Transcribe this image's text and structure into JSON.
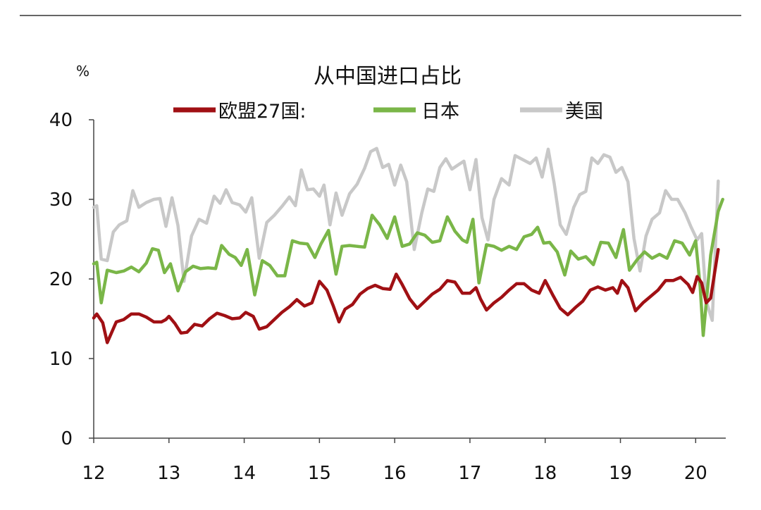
{
  "chart_data": {
    "type": "line",
    "title": "从中国进口占比",
    "unit_label": "%",
    "xlabel": "",
    "ylabel": "",
    "ylim": [
      0,
      40
    ],
    "yticks": [
      0,
      10,
      20,
      30,
      40
    ],
    "x_tick_labels": [
      "12",
      "13",
      "14",
      "15",
      "16",
      "17",
      "18",
      "19",
      "20"
    ],
    "x_start_year": 12,
    "x_range_years": [
      12,
      20.4
    ],
    "grid": false,
    "legend_position": "top",
    "series": [
      {
        "name": "欧盟27国:",
        "color": "#a01014",
        "points": [
          [
            12.0,
            15.1
          ],
          [
            12.04,
            15.6
          ],
          [
            12.12,
            14.5
          ],
          [
            12.18,
            12.0
          ],
          [
            12.3,
            14.6
          ],
          [
            12.4,
            14.9
          ],
          [
            12.5,
            15.6
          ],
          [
            12.6,
            15.6
          ],
          [
            12.7,
            15.2
          ],
          [
            12.8,
            14.6
          ],
          [
            12.9,
            14.6
          ],
          [
            12.96,
            14.9
          ],
          [
            13.0,
            15.3
          ],
          [
            13.08,
            14.4
          ],
          [
            13.16,
            13.2
          ],
          [
            13.24,
            13.3
          ],
          [
            13.34,
            14.3
          ],
          [
            13.44,
            14.1
          ],
          [
            13.54,
            15.0
          ],
          [
            13.64,
            15.7
          ],
          [
            13.74,
            15.4
          ],
          [
            13.84,
            15.0
          ],
          [
            13.94,
            15.1
          ],
          [
            14.02,
            15.8
          ],
          [
            14.12,
            15.3
          ],
          [
            14.2,
            13.7
          ],
          [
            14.3,
            14.0
          ],
          [
            14.4,
            14.9
          ],
          [
            14.5,
            15.8
          ],
          [
            14.6,
            16.5
          ],
          [
            14.7,
            17.4
          ],
          [
            14.8,
            16.6
          ],
          [
            14.9,
            17.0
          ],
          [
            15.0,
            19.7
          ],
          [
            15.1,
            18.6
          ],
          [
            15.18,
            16.7
          ],
          [
            15.26,
            14.6
          ],
          [
            15.34,
            16.2
          ],
          [
            15.44,
            16.8
          ],
          [
            15.54,
            18.1
          ],
          [
            15.64,
            18.8
          ],
          [
            15.74,
            19.2
          ],
          [
            15.84,
            18.8
          ],
          [
            15.94,
            18.7
          ],
          [
            16.02,
            20.6
          ],
          [
            16.1,
            19.3
          ],
          [
            16.2,
            17.5
          ],
          [
            16.3,
            16.3
          ],
          [
            16.4,
            17.2
          ],
          [
            16.5,
            18.1
          ],
          [
            16.6,
            18.7
          ],
          [
            16.7,
            19.8
          ],
          [
            16.8,
            19.6
          ],
          [
            16.9,
            18.2
          ],
          [
            17.0,
            18.2
          ],
          [
            17.08,
            18.9
          ],
          [
            17.14,
            17.5
          ],
          [
            17.22,
            16.1
          ],
          [
            17.32,
            17.0
          ],
          [
            17.42,
            17.7
          ],
          [
            17.52,
            18.6
          ],
          [
            17.62,
            19.4
          ],
          [
            17.72,
            19.4
          ],
          [
            17.82,
            18.6
          ],
          [
            17.92,
            18.2
          ],
          [
            18.0,
            19.8
          ],
          [
            18.1,
            18.0
          ],
          [
            18.2,
            16.3
          ],
          [
            18.3,
            15.5
          ],
          [
            18.4,
            16.4
          ],
          [
            18.5,
            17.2
          ],
          [
            18.6,
            18.6
          ],
          [
            18.7,
            19.0
          ],
          [
            18.8,
            18.6
          ],
          [
            18.9,
            18.9
          ],
          [
            18.96,
            18.2
          ],
          [
            19.02,
            19.8
          ],
          [
            19.1,
            18.9
          ],
          [
            19.2,
            16.0
          ],
          [
            19.3,
            17.0
          ],
          [
            19.4,
            17.8
          ],
          [
            19.5,
            18.6
          ],
          [
            19.6,
            19.8
          ],
          [
            19.7,
            19.8
          ],
          [
            19.8,
            20.2
          ],
          [
            19.9,
            19.3
          ],
          [
            19.96,
            18.3
          ],
          [
            20.02,
            20.3
          ],
          [
            20.08,
            19.5
          ],
          [
            20.14,
            17.0
          ],
          [
            20.2,
            17.6
          ],
          [
            20.3,
            23.7
          ]
        ]
      },
      {
        "name": "日本",
        "color": "#7ab648",
        "points": [
          [
            12.0,
            21.9
          ],
          [
            12.04,
            22.1
          ],
          [
            12.1,
            17.0
          ],
          [
            12.18,
            21.1
          ],
          [
            12.3,
            20.8
          ],
          [
            12.4,
            21.0
          ],
          [
            12.5,
            21.5
          ],
          [
            12.6,
            20.9
          ],
          [
            12.7,
            22.0
          ],
          [
            12.78,
            23.8
          ],
          [
            12.86,
            23.6
          ],
          [
            12.94,
            20.8
          ],
          [
            13.02,
            21.9
          ],
          [
            13.12,
            18.5
          ],
          [
            13.22,
            20.9
          ],
          [
            13.32,
            21.6
          ],
          [
            13.42,
            21.3
          ],
          [
            13.52,
            21.4
          ],
          [
            13.62,
            21.3
          ],
          [
            13.7,
            24.2
          ],
          [
            13.8,
            23.1
          ],
          [
            13.88,
            22.7
          ],
          [
            13.96,
            21.7
          ],
          [
            14.04,
            23.7
          ],
          [
            14.14,
            18.0
          ],
          [
            14.24,
            22.3
          ],
          [
            14.34,
            21.7
          ],
          [
            14.44,
            20.4
          ],
          [
            14.54,
            20.4
          ],
          [
            14.64,
            24.8
          ],
          [
            14.74,
            24.5
          ],
          [
            14.84,
            24.4
          ],
          [
            14.94,
            22.7
          ],
          [
            15.02,
            24.4
          ],
          [
            15.12,
            26.1
          ],
          [
            15.22,
            20.6
          ],
          [
            15.3,
            24.1
          ],
          [
            15.4,
            24.2
          ],
          [
            15.5,
            24.1
          ],
          [
            15.6,
            24.0
          ],
          [
            15.7,
            28.0
          ],
          [
            15.8,
            26.8
          ],
          [
            15.9,
            25.1
          ],
          [
            16.0,
            27.8
          ],
          [
            16.1,
            24.1
          ],
          [
            16.2,
            24.4
          ],
          [
            16.3,
            25.8
          ],
          [
            16.4,
            25.5
          ],
          [
            16.5,
            24.6
          ],
          [
            16.6,
            24.8
          ],
          [
            16.7,
            27.8
          ],
          [
            16.8,
            26.0
          ],
          [
            16.9,
            24.9
          ],
          [
            16.96,
            24.6
          ],
          [
            17.04,
            27.5
          ],
          [
            17.12,
            19.5
          ],
          [
            17.22,
            24.3
          ],
          [
            17.32,
            24.1
          ],
          [
            17.42,
            23.6
          ],
          [
            17.52,
            24.1
          ],
          [
            17.62,
            23.7
          ],
          [
            17.72,
            25.3
          ],
          [
            17.82,
            25.6
          ],
          [
            17.9,
            26.5
          ],
          [
            17.98,
            24.5
          ],
          [
            18.06,
            24.6
          ],
          [
            18.16,
            23.4
          ],
          [
            18.26,
            20.5
          ],
          [
            18.34,
            23.5
          ],
          [
            18.44,
            22.5
          ],
          [
            18.54,
            22.8
          ],
          [
            18.64,
            21.8
          ],
          [
            18.74,
            24.6
          ],
          [
            18.84,
            24.5
          ],
          [
            18.94,
            22.7
          ],
          [
            19.04,
            26.2
          ],
          [
            19.12,
            21.1
          ],
          [
            19.22,
            22.4
          ],
          [
            19.32,
            23.4
          ],
          [
            19.42,
            22.6
          ],
          [
            19.52,
            23.1
          ],
          [
            19.62,
            22.6
          ],
          [
            19.72,
            24.8
          ],
          [
            19.82,
            24.5
          ],
          [
            19.92,
            23.0
          ],
          [
            20.0,
            24.8
          ],
          [
            20.06,
            19.0
          ],
          [
            20.1,
            12.9
          ],
          [
            20.2,
            23.0
          ],
          [
            20.3,
            28.5
          ],
          [
            20.36,
            30.0
          ]
        ]
      },
      {
        "name": "美国",
        "color": "#c8c8c8",
        "points": [
          [
            12.0,
            29.0
          ],
          [
            12.04,
            29.2
          ],
          [
            12.1,
            22.5
          ],
          [
            12.18,
            22.3
          ],
          [
            12.26,
            25.9
          ],
          [
            12.34,
            26.8
          ],
          [
            12.44,
            27.3
          ],
          [
            12.52,
            31.1
          ],
          [
            12.6,
            29.0
          ],
          [
            12.7,
            29.6
          ],
          [
            12.8,
            30.0
          ],
          [
            12.88,
            30.1
          ],
          [
            12.96,
            26.6
          ],
          [
            13.04,
            30.2
          ],
          [
            13.12,
            26.7
          ],
          [
            13.2,
            19.7
          ],
          [
            13.3,
            25.4
          ],
          [
            13.4,
            27.5
          ],
          [
            13.5,
            27.0
          ],
          [
            13.6,
            30.4
          ],
          [
            13.68,
            29.5
          ],
          [
            13.76,
            31.2
          ],
          [
            13.84,
            29.6
          ],
          [
            13.94,
            29.3
          ],
          [
            14.02,
            28.4
          ],
          [
            14.1,
            30.2
          ],
          [
            14.2,
            22.6
          ],
          [
            14.3,
            27.1
          ],
          [
            14.4,
            28.0
          ],
          [
            14.5,
            29.1
          ],
          [
            14.6,
            30.3
          ],
          [
            14.68,
            29.2
          ],
          [
            14.76,
            33.7
          ],
          [
            14.84,
            31.2
          ],
          [
            14.92,
            31.3
          ],
          [
            15.0,
            30.4
          ],
          [
            15.06,
            31.8
          ],
          [
            15.14,
            26.8
          ],
          [
            15.22,
            30.8
          ],
          [
            15.3,
            28.0
          ],
          [
            15.4,
            30.7
          ],
          [
            15.5,
            31.9
          ],
          [
            15.6,
            33.9
          ],
          [
            15.68,
            36.0
          ],
          [
            15.76,
            36.4
          ],
          [
            15.84,
            34.0
          ],
          [
            15.92,
            34.4
          ],
          [
            16.0,
            31.8
          ],
          [
            16.08,
            34.3
          ],
          [
            16.16,
            32.2
          ],
          [
            16.26,
            23.7
          ],
          [
            16.36,
            28.3
          ],
          [
            16.44,
            31.3
          ],
          [
            16.52,
            31.0
          ],
          [
            16.6,
            34.0
          ],
          [
            16.68,
            35.1
          ],
          [
            16.76,
            33.8
          ],
          [
            16.84,
            34.3
          ],
          [
            16.92,
            34.8
          ],
          [
            17.0,
            31.2
          ],
          [
            17.08,
            35.0
          ],
          [
            17.16,
            27.7
          ],
          [
            17.24,
            24.9
          ],
          [
            17.32,
            30.0
          ],
          [
            17.42,
            32.6
          ],
          [
            17.52,
            31.8
          ],
          [
            17.6,
            35.5
          ],
          [
            17.7,
            35.0
          ],
          [
            17.8,
            34.5
          ],
          [
            17.88,
            35.2
          ],
          [
            17.96,
            32.8
          ],
          [
            18.04,
            36.3
          ],
          [
            18.12,
            32.0
          ],
          [
            18.2,
            26.8
          ],
          [
            18.28,
            25.6
          ],
          [
            18.38,
            29.0
          ],
          [
            18.46,
            30.6
          ],
          [
            18.54,
            31.0
          ],
          [
            18.62,
            35.2
          ],
          [
            18.7,
            34.5
          ],
          [
            18.78,
            35.6
          ],
          [
            18.86,
            35.3
          ],
          [
            18.94,
            33.4
          ],
          [
            19.02,
            34.0
          ],
          [
            19.1,
            32.2
          ],
          [
            19.18,
            25.1
          ],
          [
            19.26,
            21.0
          ],
          [
            19.34,
            25.4
          ],
          [
            19.42,
            27.5
          ],
          [
            19.52,
            28.3
          ],
          [
            19.6,
            31.1
          ],
          [
            19.68,
            30.0
          ],
          [
            19.76,
            30.0
          ],
          [
            19.86,
            28.3
          ],
          [
            19.94,
            26.5
          ],
          [
            20.02,
            24.9
          ],
          [
            20.08,
            25.7
          ],
          [
            20.14,
            17.2
          ],
          [
            20.22,
            14.8
          ],
          [
            20.3,
            32.3
          ]
        ]
      }
    ]
  }
}
